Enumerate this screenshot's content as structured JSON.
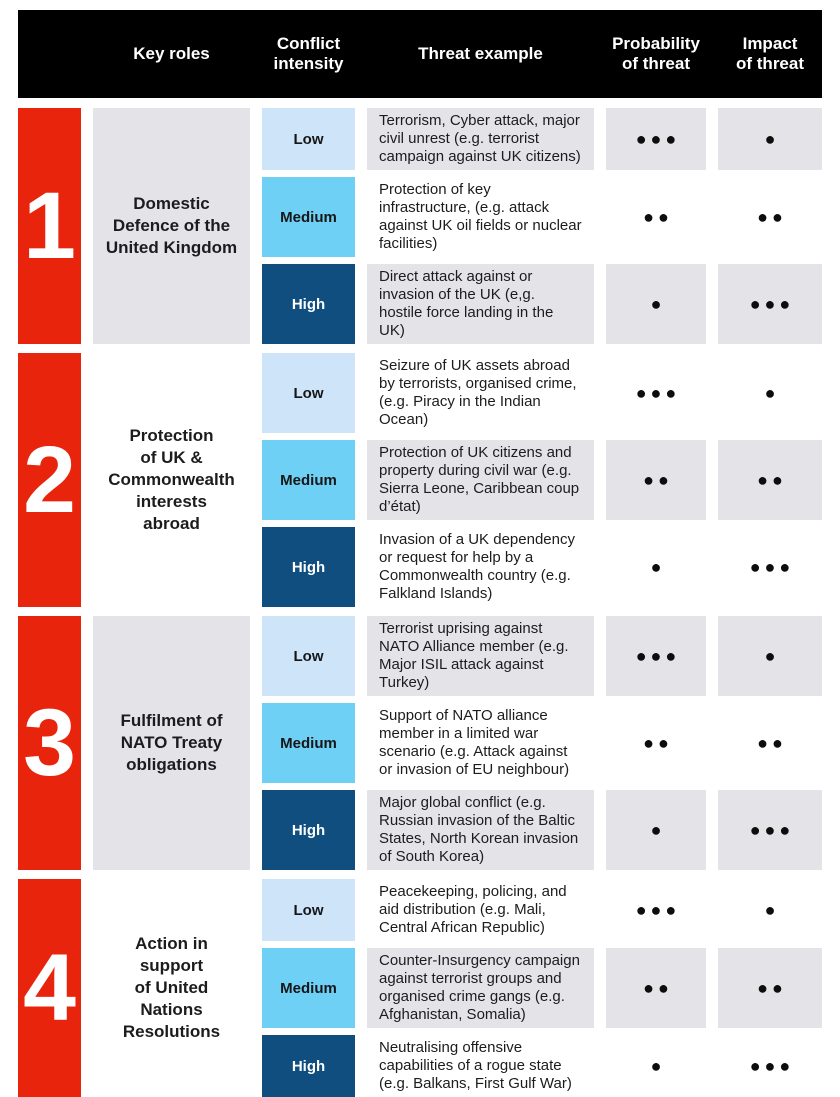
{
  "header": {
    "columns": [
      "Key roles",
      "Conflict\nintensity",
      "Threat example",
      "Probability\nof threat",
      "Impact\nof threat"
    ]
  },
  "palette": {
    "accent_red": "#e9240d",
    "intensity_low_blue": "#cde4f9",
    "intensity_medium_blue": "#6fd0f6",
    "intensity_high_navy": "#0f4e7e",
    "row_shade_gray": "#e4e4e8",
    "header_black": "#000000"
  },
  "dot_symbol": "●",
  "sections": [
    {
      "number": "1",
      "role": "Domestic\nDefence of the\nUnited Kingdom",
      "rows": [
        {
          "intensity": "Low",
          "threat": "Terrorism, Cyber attack, major civil unrest (e.g. terrorist campaign against UK citizens)",
          "probability": 3,
          "impact": 1,
          "probability_dots": "●●●",
          "impact_dots": "●"
        },
        {
          "intensity": "Medium",
          "threat": "Protection of key infrastructure, (e.g. attack against UK oil fields or nuclear facilities)",
          "probability": 2,
          "impact": 2,
          "probability_dots": "●●",
          "impact_dots": "●●"
        },
        {
          "intensity": "High",
          "threat": "Direct attack against or invasion of the UK (e,g. hostile force landing in the UK)",
          "probability": 1,
          "impact": 3,
          "probability_dots": "●",
          "impact_dots": "●●●"
        }
      ]
    },
    {
      "number": "2",
      "role": "Protection\nof UK &\nCommonwealth\ninterests\nabroad",
      "rows": [
        {
          "intensity": "Low",
          "threat": "Seizure of UK assets abroad by terrorists, organised crime, (e.g. Piracy in the Indian Ocean)",
          "probability": 3,
          "impact": 1,
          "probability_dots": "●●●",
          "impact_dots": "●"
        },
        {
          "intensity": "Medium",
          "threat": "Protection of UK citizens and property during civil war (e.g. Sierra Leone, Caribbean coup d’état)",
          "probability": 2,
          "impact": 2,
          "probability_dots": "●●",
          "impact_dots": "●●"
        },
        {
          "intensity": "High",
          "threat": "Invasion of a UK dependency or request for help by a Commonwealth country (e.g. Falkland Islands)",
          "probability": 1,
          "impact": 3,
          "probability_dots": "●",
          "impact_dots": "●●●"
        }
      ]
    },
    {
      "number": "3",
      "role": "Fulfilment of\nNATO Treaty\nobligations",
      "rows": [
        {
          "intensity": "Low",
          "threat": "Terrorist uprising against NATO Alliance member (e.g. Major ISIL attack against Turkey)",
          "probability": 3,
          "impact": 1,
          "probability_dots": "●●●",
          "impact_dots": "●"
        },
        {
          "intensity": "Medium",
          "threat": "Support of NATO alliance member in a limited war scenario (e.g. Attack against or invasion of EU neighbour)",
          "probability": 2,
          "impact": 2,
          "probability_dots": "●●",
          "impact_dots": "●●"
        },
        {
          "intensity": "High",
          "threat": "Major global conflict (e.g. Russian invasion of the Baltic States, North Korean invasion of South Korea)",
          "probability": 1,
          "impact": 3,
          "probability_dots": "●",
          "impact_dots": "●●●"
        }
      ]
    },
    {
      "number": "4",
      "role": "Action in\nsupport\nof United\nNations\nResolutions",
      "rows": [
        {
          "intensity": "Low",
          "threat": "Peacekeeping, policing, and aid distribution (e.g. Mali, Central African Republic)",
          "probability": 3,
          "impact": 1,
          "probability_dots": "●●●",
          "impact_dots": "●"
        },
        {
          "intensity": "Medium",
          "threat": "Counter-Insurgency campaign against terrorist groups and organised crime gangs (e.g. Afghanistan, Somalia)",
          "probability": 2,
          "impact": 2,
          "probability_dots": "●●",
          "impact_dots": "●●"
        },
        {
          "intensity": "High",
          "threat": "Neutralising offensive capabilities of a rogue state (e.g. Balkans, First Gulf War)",
          "probability": 1,
          "impact": 3,
          "probability_dots": "●",
          "impact_dots": "●●●"
        }
      ]
    }
  ]
}
